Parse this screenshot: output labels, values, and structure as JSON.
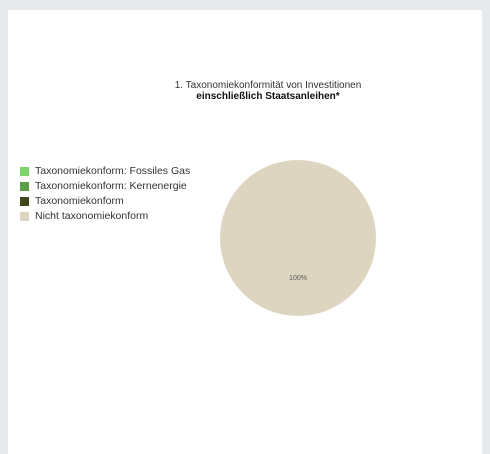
{
  "chart_data": {
    "type": "pie",
    "title": "1. Taxonomiekonformität von Investitionen",
    "subtitle": "einschließlich Staatsanleihen*",
    "legend_position": "left",
    "categories": [
      "Taxonomiekonform: Fossiles Gas",
      "Taxonomiekonform: Kernenergie",
      "Taxonomiekonform",
      "Nicht taxonomiekonform"
    ],
    "values": [
      0,
      0,
      0,
      100
    ],
    "colors": [
      "#7ed36a",
      "#5ca04a",
      "#3e4a1e",
      "#ddd5c0"
    ],
    "data_labels": [
      "",
      "",
      "",
      "100%"
    ]
  }
}
